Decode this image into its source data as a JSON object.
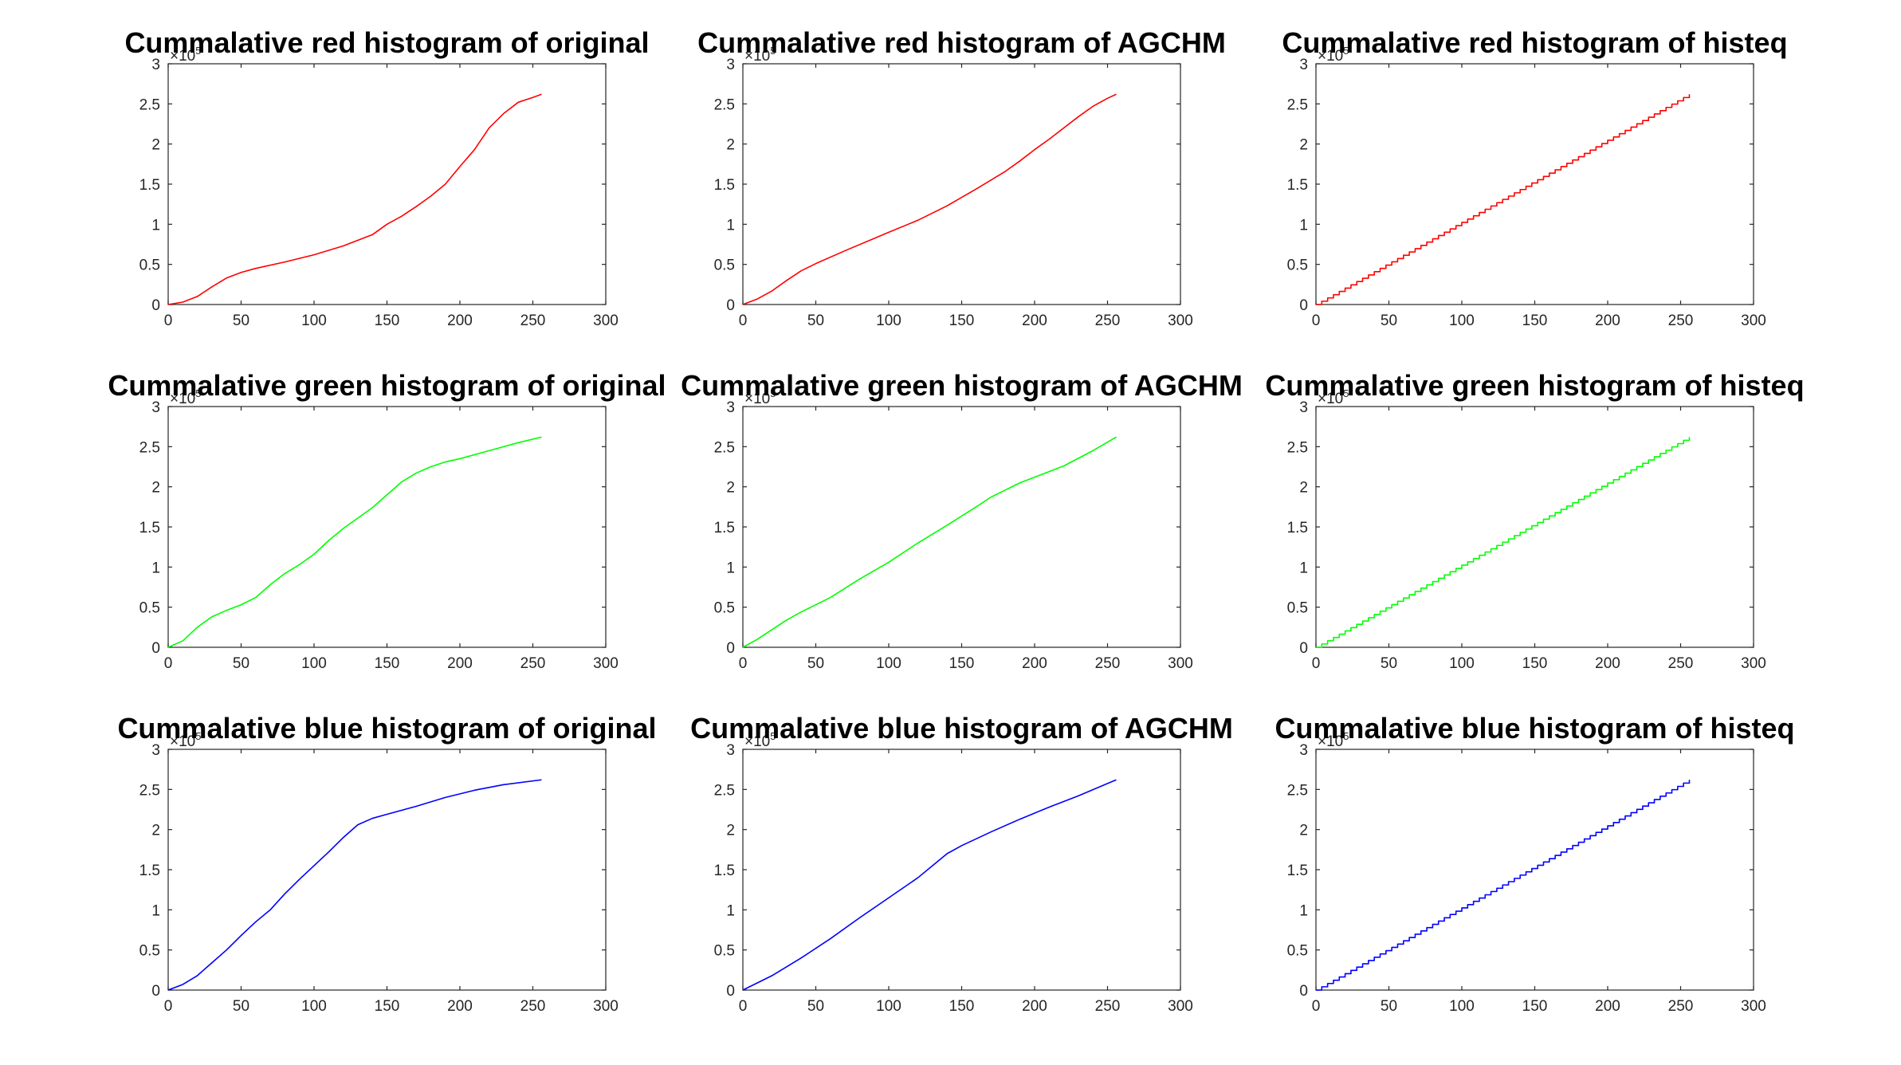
{
  "chart_data": [
    {
      "type": "line",
      "title": "Cummalative red histogram of original",
      "color": "#ff0000",
      "xlim": [
        0,
        300
      ],
      "ylim": [
        0,
        3
      ],
      "x_ticks": [
        "0",
        "50",
        "100",
        "150",
        "200",
        "250",
        "300"
      ],
      "y_ticks": [
        "0",
        "0.5",
        "1",
        "1.5",
        "2",
        "2.5",
        "3"
      ],
      "y_multiplier": {
        "base": "×10",
        "exp": "5"
      },
      "x": [
        0,
        10,
        20,
        30,
        40,
        50,
        60,
        80,
        100,
        120,
        140,
        150,
        160,
        170,
        180,
        190,
        200,
        210,
        220,
        230,
        240,
        250,
        256
      ],
      "y": [
        0.0,
        0.03,
        0.1,
        0.22,
        0.33,
        0.4,
        0.45,
        0.53,
        0.62,
        0.73,
        0.87,
        1.0,
        1.1,
        1.22,
        1.35,
        1.5,
        1.72,
        1.93,
        2.2,
        2.38,
        2.52,
        2.58,
        2.62
      ]
    },
    {
      "type": "line",
      "title": "Cummalative red histogram of AGCHM",
      "color": "#ff0000",
      "xlim": [
        0,
        300
      ],
      "ylim": [
        0,
        3
      ],
      "x_ticks": [
        "0",
        "50",
        "100",
        "150",
        "200",
        "250",
        "300"
      ],
      "y_ticks": [
        "0",
        "0.5",
        "1",
        "1.5",
        "2",
        "2.5",
        "3"
      ],
      "y_multiplier": {
        "base": "×10",
        "exp": "5"
      },
      "x": [
        0,
        10,
        20,
        30,
        40,
        50,
        70,
        100,
        120,
        140,
        160,
        180,
        190,
        200,
        210,
        220,
        230,
        240,
        250,
        256
      ],
      "y": [
        0.0,
        0.07,
        0.17,
        0.3,
        0.42,
        0.51,
        0.67,
        0.9,
        1.05,
        1.23,
        1.44,
        1.66,
        1.79,
        1.93,
        2.06,
        2.2,
        2.34,
        2.47,
        2.57,
        2.62
      ]
    },
    {
      "type": "line",
      "title": "Cummalative red histogram of histeq",
      "color": "#ff0000",
      "xlim": [
        0,
        300
      ],
      "ylim": [
        0,
        3
      ],
      "x_ticks": [
        "0",
        "50",
        "100",
        "150",
        "200",
        "250",
        "300"
      ],
      "y_ticks": [
        "0",
        "0.5",
        "1",
        "1.5",
        "2",
        "2.5",
        "3"
      ],
      "y_multiplier": {
        "base": "×10",
        "exp": "5"
      },
      "x": [
        0,
        256
      ],
      "y": [
        0.0,
        2.62
      ]
    },
    {
      "type": "line",
      "title": "Cummalative green histogram of original",
      "color": "#00ff00",
      "xlim": [
        0,
        300
      ],
      "ylim": [
        0,
        3
      ],
      "x_ticks": [
        "0",
        "50",
        "100",
        "150",
        "200",
        "250",
        "300"
      ],
      "y_ticks": [
        "0",
        "0.5",
        "1",
        "1.5",
        "2",
        "2.5",
        "3"
      ],
      "y_multiplier": {
        "base": "×10",
        "exp": "5"
      },
      "x": [
        0,
        10,
        20,
        30,
        40,
        50,
        60,
        70,
        80,
        90,
        100,
        110,
        120,
        140,
        150,
        160,
        170,
        180,
        190,
        200,
        220,
        240,
        256
      ],
      "y": [
        0.0,
        0.08,
        0.25,
        0.38,
        0.46,
        0.53,
        0.62,
        0.78,
        0.92,
        1.03,
        1.16,
        1.33,
        1.48,
        1.74,
        1.9,
        2.06,
        2.17,
        2.25,
        2.31,
        2.35,
        2.45,
        2.55,
        2.62
      ]
    },
    {
      "type": "line",
      "title": "Cummalative green histogram of AGCHM",
      "color": "#00ff00",
      "xlim": [
        0,
        300
      ],
      "ylim": [
        0,
        3
      ],
      "x_ticks": [
        "0",
        "50",
        "100",
        "150",
        "200",
        "250",
        "300"
      ],
      "y_ticks": [
        "0",
        "0.5",
        "1",
        "1.5",
        "2",
        "2.5",
        "3"
      ],
      "y_multiplier": {
        "base": "×10",
        "exp": "5"
      },
      "x": [
        0,
        10,
        20,
        30,
        40,
        60,
        80,
        100,
        120,
        140,
        160,
        170,
        180,
        190,
        200,
        220,
        240,
        256
      ],
      "y": [
        0.0,
        0.1,
        0.22,
        0.34,
        0.44,
        0.62,
        0.85,
        1.06,
        1.3,
        1.52,
        1.75,
        1.87,
        1.96,
        2.05,
        2.12,
        2.26,
        2.45,
        2.62
      ]
    },
    {
      "type": "line",
      "title": "Cummalative green histogram of histeq",
      "color": "#00ff00",
      "xlim": [
        0,
        300
      ],
      "ylim": [
        0,
        3
      ],
      "x_ticks": [
        "0",
        "50",
        "100",
        "150",
        "200",
        "250",
        "300"
      ],
      "y_ticks": [
        "0",
        "0.5",
        "1",
        "1.5",
        "2",
        "2.5",
        "3"
      ],
      "y_multiplier": {
        "base": "×10",
        "exp": "5"
      },
      "x": [
        0,
        256
      ],
      "y": [
        0.0,
        2.62
      ]
    },
    {
      "type": "line",
      "title": "Cummalative blue histogram of original",
      "color": "#0000ff",
      "xlim": [
        0,
        300
      ],
      "ylim": [
        0,
        3
      ],
      "x_ticks": [
        "0",
        "50",
        "100",
        "150",
        "200",
        "250",
        "300"
      ],
      "y_ticks": [
        "0",
        "0.5",
        "1",
        "1.5",
        "2",
        "2.5",
        "3"
      ],
      "y_multiplier": {
        "base": "×10",
        "exp": "5"
      },
      "x": [
        0,
        10,
        20,
        30,
        40,
        50,
        60,
        70,
        80,
        90,
        100,
        110,
        120,
        130,
        140,
        150,
        170,
        190,
        210,
        230,
        256
      ],
      "y": [
        0.0,
        0.07,
        0.18,
        0.34,
        0.5,
        0.68,
        0.85,
        1.0,
        1.2,
        1.38,
        1.55,
        1.72,
        1.9,
        2.06,
        2.14,
        2.19,
        2.29,
        2.4,
        2.49,
        2.56,
        2.62
      ]
    },
    {
      "type": "line",
      "title": "Cummalative blue histogram of AGCHM",
      "color": "#0000ff",
      "xlim": [
        0,
        300
      ],
      "ylim": [
        0,
        3
      ],
      "x_ticks": [
        "0",
        "50",
        "100",
        "150",
        "200",
        "250",
        "300"
      ],
      "y_ticks": [
        "0",
        "0.5",
        "1",
        "1.5",
        "2",
        "2.5",
        "3"
      ],
      "y_multiplier": {
        "base": "×10",
        "exp": "5"
      },
      "x": [
        0,
        20,
        40,
        60,
        80,
        100,
        120,
        130,
        140,
        150,
        170,
        190,
        210,
        230,
        256
      ],
      "y": [
        0.0,
        0.18,
        0.4,
        0.64,
        0.9,
        1.15,
        1.4,
        1.55,
        1.7,
        1.8,
        1.97,
        2.13,
        2.28,
        2.42,
        2.62
      ]
    },
    {
      "type": "line",
      "title": "Cummalative blue histogram of histeq",
      "color": "#0000ff",
      "xlim": [
        0,
        300
      ],
      "ylim": [
        0,
        3
      ],
      "x_ticks": [
        "0",
        "50",
        "100",
        "150",
        "200",
        "250",
        "300"
      ],
      "y_ticks": [
        "0",
        "0.5",
        "1",
        "1.5",
        "2",
        "2.5",
        "3"
      ],
      "y_multiplier": {
        "base": "×10",
        "exp": "5"
      },
      "x": [
        0,
        256
      ],
      "y": [
        0.0,
        2.62
      ]
    }
  ]
}
